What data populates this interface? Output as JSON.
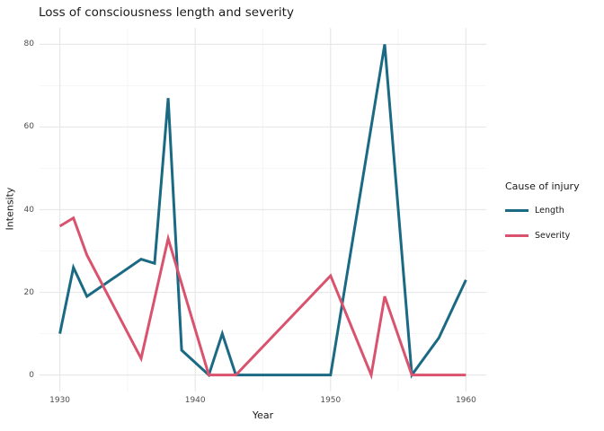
{
  "chart_data": {
    "type": "line",
    "title": "Loss of consciousness length and severity",
    "xlabel": "Year",
    "ylabel": "Intensity",
    "legend": {
      "title": "Cause of injury",
      "position": "right"
    },
    "x_ticks": [
      1930,
      1940,
      1950,
      1960
    ],
    "y_ticks": [
      0,
      20,
      40,
      60,
      80
    ],
    "x_minor": [
      1935,
      1945,
      1955
    ],
    "y_minor": [
      10,
      30,
      50,
      70
    ],
    "xlim": [
      1928.5,
      1961.5
    ],
    "ylim": [
      -4,
      84
    ],
    "grid": true,
    "series": [
      {
        "name": "Length",
        "color": "#1b6a83",
        "points": [
          [
            1930,
            10
          ],
          [
            1931,
            26
          ],
          [
            1932,
            19
          ],
          [
            1936,
            28
          ],
          [
            1937,
            27
          ],
          [
            1938,
            67
          ],
          [
            1939,
            6
          ],
          [
            1941,
            0
          ],
          [
            1942,
            10
          ],
          [
            1943,
            0
          ],
          [
            1950,
            0
          ],
          [
            1954,
            80
          ],
          [
            1956,
            0
          ],
          [
            1958,
            9
          ],
          [
            1960,
            23
          ]
        ]
      },
      {
        "name": "Severity",
        "color": "#d9536f",
        "points": [
          [
            1930,
            36
          ],
          [
            1931,
            38
          ],
          [
            1932,
            29
          ],
          [
            1936,
            4
          ],
          [
            1938,
            33
          ],
          [
            1941,
            0
          ],
          [
            1943,
            0
          ],
          [
            1950,
            24
          ],
          [
            1953,
            0
          ],
          [
            1954,
            19
          ],
          [
            1956,
            0
          ],
          [
            1960,
            0
          ]
        ]
      }
    ],
    "colors": {
      "grid_major": "#e8e8e8",
      "grid_minor": "#f4f4f4",
      "tick_label": "#4d4d4d",
      "text": "#1a1a1a",
      "background": "#ffffff"
    }
  }
}
